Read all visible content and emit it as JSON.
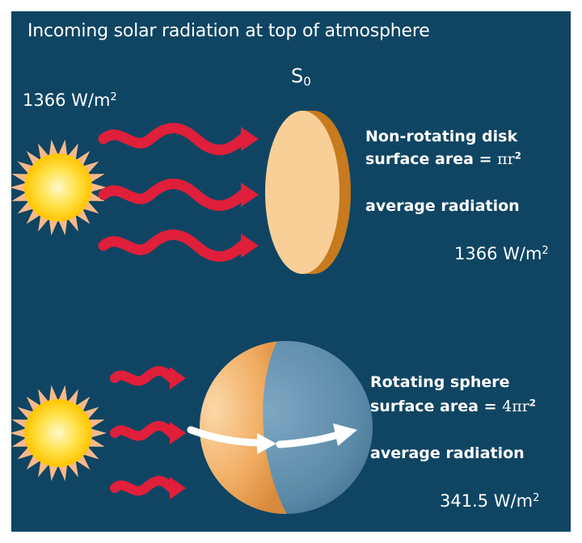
{
  "title": "Incoming solar radiation at top of atmosphere",
  "incoming_flux": {
    "value": "1366 W/m",
    "exp": "2"
  },
  "solar_constant": {
    "symbol": "S",
    "subscript": "0"
  },
  "disk": {
    "line1": "Non-rotating disk",
    "line2_prefix": "surface area = ",
    "line2_symbol": "πr",
    "line2_exp": "2",
    "avg_label": "average radiation",
    "avg_value": "1366 W/m",
    "avg_exp": "2"
  },
  "sphere": {
    "line1": "Rotating sphere",
    "line2_prefix": "surface area = ",
    "line2_symbol": "4πr",
    "line2_exp": "2",
    "avg_label": "average radiation",
    "avg_value": "341.5 W/m",
    "avg_exp": "2"
  },
  "colors": {
    "background": "#0f4563",
    "sun_core": "#ffd200",
    "sun_rays": "#f7b98a",
    "arrows": "#e01f3a",
    "disk_face": "#f9cf98",
    "disk_edge": "#c77a1e",
    "sphere_day": "#efa75a",
    "sphere_night": "#5a8aa8"
  },
  "icons": [
    "sun-icon",
    "radiation-wave-arrow",
    "disk-shape",
    "sphere-shape",
    "rotation-arrow"
  ]
}
